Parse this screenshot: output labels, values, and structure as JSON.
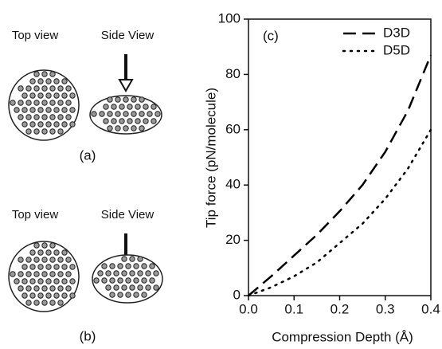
{
  "panels": [
    {
      "top_view": "Top view",
      "side_view": "Side View",
      "label": "(a)"
    },
    {
      "top_view": "Top view",
      "side_view": "Side View",
      "label": "(b)"
    }
  ],
  "chart_data": {
    "type": "line",
    "annotation": "(c)",
    "x_label": "Compression Depth (Å)",
    "y_label": "Tip force (pN/molecule)",
    "x": [
      0,
      0.05,
      0.1,
      0.15,
      0.2,
      0.25,
      0.3,
      0.35,
      0.4
    ],
    "series": [
      {
        "name": "D3D",
        "color": "#000000",
        "dash": "dashed",
        "values": [
          0,
          7,
          14.5,
          22,
          30.5,
          40,
          52,
          67,
          87
        ]
      },
      {
        "name": "D5D",
        "color": "#000000",
        "dash": "dotted",
        "values": [
          0,
          3,
          7,
          12,
          19,
          26,
          35,
          46,
          60
        ]
      }
    ],
    "xlim": [
      0,
      0.4
    ],
    "ylim": [
      0,
      100
    ],
    "xticks": [
      {
        "value": 0,
        "label": "0.0"
      },
      0.1,
      0.2,
      0.3,
      0.4
    ],
    "yticks": [
      0,
      20,
      40,
      60,
      80,
      100
    ],
    "legend": "top-right"
  }
}
